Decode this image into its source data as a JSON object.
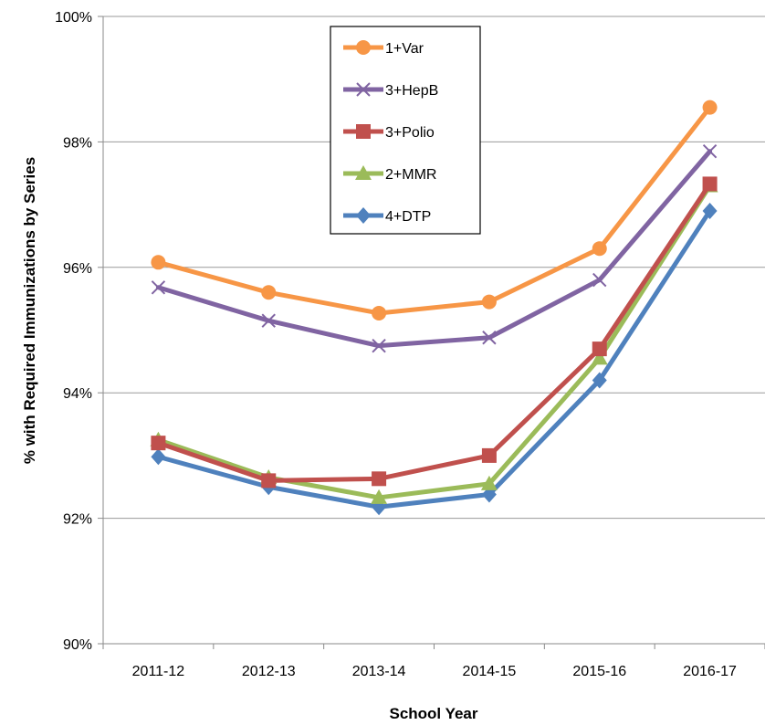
{
  "chart_data": {
    "type": "line",
    "xlabel": "School Year",
    "ylabel": "% with Required Immunizations by Series",
    "categories": [
      "2011-12",
      "2012-13",
      "2013-14",
      "2014-15",
      "2015-16",
      "2016-17"
    ],
    "ylim": [
      90,
      100
    ],
    "yticks": [
      90,
      92,
      94,
      96,
      98,
      100
    ],
    "ytick_labels": [
      "90%",
      "92%",
      "94%",
      "96%",
      "98%",
      "100%"
    ],
    "grid": "horizontal",
    "legend_position": "top-center",
    "series": [
      {
        "name": "1+Var",
        "color": "#F79646",
        "marker": "circle",
        "values": [
          96.08,
          95.6,
          95.27,
          95.45,
          96.3,
          98.55
        ]
      },
      {
        "name": "3+HepB",
        "color": "#8064A2",
        "marker": "x",
        "values": [
          95.68,
          95.15,
          94.75,
          94.88,
          95.8,
          97.85
        ]
      },
      {
        "name": "3+Polio",
        "color": "#C0504D",
        "marker": "square",
        "values": [
          93.2,
          92.6,
          92.63,
          93.0,
          94.7,
          97.33
        ]
      },
      {
        "name": "2+MMR",
        "color": "#9BBB59",
        "marker": "triangle",
        "values": [
          93.25,
          92.65,
          92.33,
          92.55,
          94.55,
          97.3
        ]
      },
      {
        "name": "4+DTP",
        "color": "#4F81BD",
        "marker": "diamond",
        "values": [
          92.98,
          92.5,
          92.18,
          92.38,
          94.2,
          96.9
        ]
      }
    ]
  }
}
